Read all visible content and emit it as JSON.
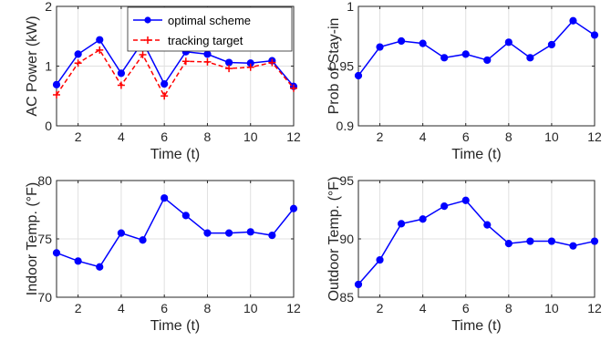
{
  "chart_data": [
    {
      "type": "line",
      "xlabel": "Time (t)",
      "ylabel": "AC Power (kW)",
      "xlim": [
        1,
        12
      ],
      "ylim": [
        0,
        2
      ],
      "xticks": [
        2,
        4,
        6,
        8,
        10,
        12
      ],
      "yticks": [
        0,
        1,
        2
      ],
      "grid": true,
      "legend": "top-right",
      "x": [
        1,
        2,
        3,
        4,
        5,
        6,
        7,
        8,
        9,
        10,
        11,
        12
      ],
      "series": [
        {
          "name": "optimal scheme",
          "color": "#0000ff",
          "style": "solid-circle",
          "values": [
            0.69,
            1.2,
            1.44,
            0.88,
            1.41,
            0.7,
            1.24,
            1.2,
            1.06,
            1.05,
            1.09,
            0.66
          ]
        },
        {
          "name": "tracking target",
          "color": "#ff0000",
          "style": "dashed-plus",
          "values": [
            0.52,
            1.05,
            1.27,
            0.68,
            1.19,
            0.5,
            1.08,
            1.07,
            0.96,
            0.98,
            1.06,
            0.63
          ]
        }
      ]
    },
    {
      "type": "line",
      "xlabel": "Time (t)",
      "ylabel": "Prob of Stay-in",
      "xlim": [
        1,
        12
      ],
      "ylim": [
        0.9,
        1
      ],
      "xticks": [
        2,
        4,
        6,
        8,
        10,
        12
      ],
      "yticks": [
        0.9,
        0.95,
        1
      ],
      "grid": true,
      "x": [
        1,
        2,
        3,
        4,
        5,
        6,
        7,
        8,
        9,
        10,
        11,
        12
      ],
      "series": [
        {
          "color": "#0000ff",
          "style": "solid-circle",
          "values": [
            0.942,
            0.966,
            0.971,
            0.969,
            0.957,
            0.96,
            0.955,
            0.97,
            0.957,
            0.968,
            0.988,
            0.976
          ]
        }
      ]
    },
    {
      "type": "line",
      "xlabel": "Time (t)",
      "ylabel": "Indoor Temp. (°F)",
      "xlim": [
        1,
        12
      ],
      "ylim": [
        70,
        80
      ],
      "xticks": [
        2,
        4,
        6,
        8,
        10,
        12
      ],
      "yticks": [
        70,
        75,
        80
      ],
      "grid": true,
      "x": [
        1,
        2,
        3,
        4,
        5,
        6,
        7,
        8,
        9,
        10,
        11,
        12
      ],
      "series": [
        {
          "color": "#0000ff",
          "style": "solid-circle",
          "values": [
            73.8,
            73.1,
            72.6,
            75.5,
            74.9,
            78.5,
            77.0,
            75.5,
            75.5,
            75.6,
            75.3,
            77.6
          ]
        }
      ]
    },
    {
      "type": "line",
      "xlabel": "Time (t)",
      "ylabel": "Outdoor Temp. (°F)",
      "xlim": [
        1,
        12
      ],
      "ylim": [
        85,
        95
      ],
      "xticks": [
        2,
        4,
        6,
        8,
        10,
        12
      ],
      "yticks": [
        85,
        90,
        95
      ],
      "grid": true,
      "x": [
        1,
        2,
        3,
        4,
        5,
        6,
        7,
        8,
        9,
        10,
        11,
        12
      ],
      "series": [
        {
          "color": "#0000ff",
          "style": "solid-circle",
          "values": [
            86.1,
            88.2,
            91.3,
            91.7,
            92.8,
            93.3,
            91.2,
            89.6,
            89.8,
            89.8,
            89.4,
            89.8
          ]
        }
      ]
    }
  ]
}
